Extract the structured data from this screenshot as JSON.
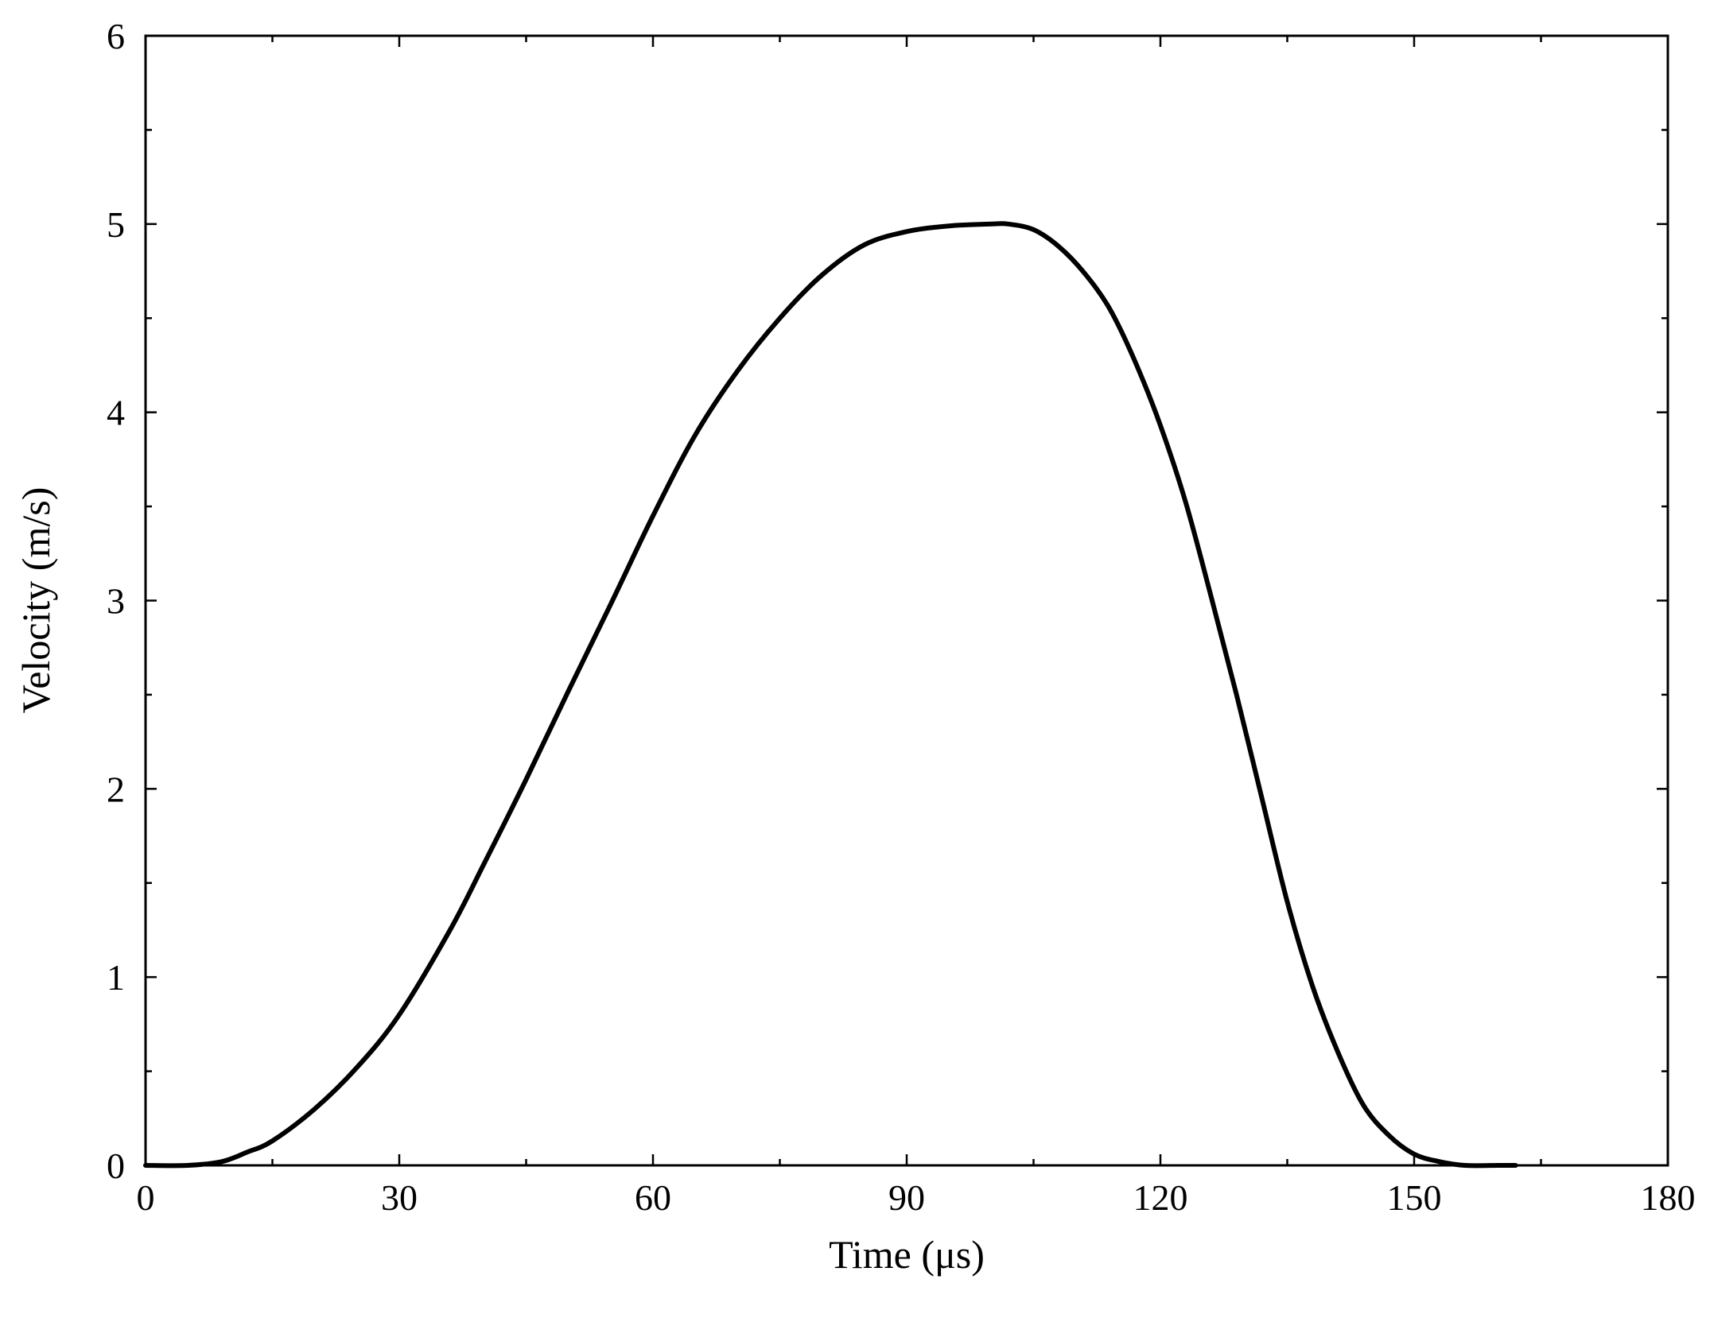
{
  "chart_data": {
    "type": "line",
    "xlabel": "Time (μs)",
    "ylabel": "Velocity (m/s)",
    "xlim": [
      0,
      180
    ],
    "ylim": [
      0,
      6
    ],
    "x_ticks": [
      "0",
      "30",
      "60",
      "90",
      "120",
      "150",
      "180"
    ],
    "y_ticks": [
      "0",
      "1",
      "2",
      "3",
      "4",
      "5",
      "6"
    ],
    "grid": false,
    "legend": "none",
    "line_color": "#000000",
    "series": [
      {
        "x": [
          0,
          5,
          9,
          12,
          15,
          20,
          25,
          30,
          36,
          40,
          45,
          50,
          55,
          60,
          65,
          70,
          75,
          80,
          85,
          90,
          95,
          100,
          102,
          105,
          108,
          111,
          114,
          117,
          120,
          123,
          126,
          129,
          132,
          135,
          138,
          141,
          144,
          147,
          150,
          153,
          156,
          160,
          162
        ],
        "y": [
          0,
          0,
          0.02,
          0.07,
          0.13,
          0.3,
          0.52,
          0.8,
          1.25,
          1.6,
          2.05,
          2.52,
          2.98,
          3.45,
          3.88,
          4.22,
          4.5,
          4.73,
          4.89,
          4.96,
          4.99,
          5.0,
          5.0,
          4.97,
          4.88,
          4.74,
          4.55,
          4.27,
          3.93,
          3.52,
          3.02,
          2.5,
          1.95,
          1.4,
          0.95,
          0.6,
          0.32,
          0.16,
          0.06,
          0.02,
          0.0,
          0.0,
          0.0
        ]
      }
    ]
  }
}
